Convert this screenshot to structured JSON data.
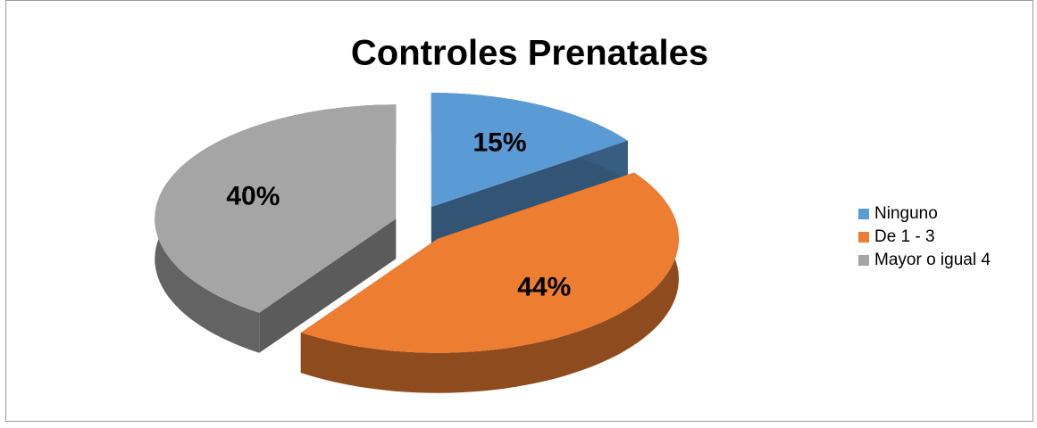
{
  "chart_data": {
    "type": "pie",
    "title": "Controles Prenatales",
    "categories": [
      "Ninguno",
      "De 1 - 3",
      "Mayor o igual 4"
    ],
    "values": [
      15,
      44,
      40
    ],
    "colors": [
      "#5b9bd5",
      "#ed7d31",
      "#a5a5a5"
    ],
    "legend": "right"
  }
}
